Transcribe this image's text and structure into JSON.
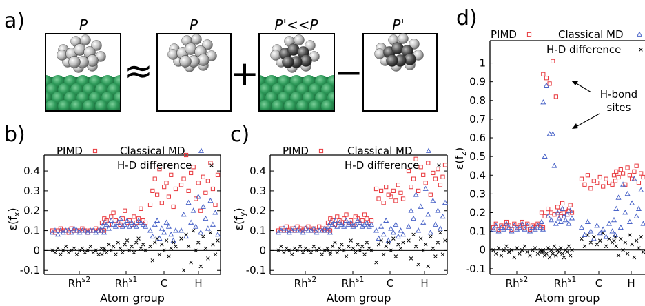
{
  "panels": {
    "a": {
      "letter": "a)",
      "labels": [
        "P",
        "P",
        "P'<<P",
        "P'"
      ],
      "ops": [
        "≈",
        "+",
        "−"
      ]
    },
    "b": {
      "letter": "b)"
    },
    "c": {
      "letter": "c)"
    },
    "d": {
      "letter": "d)"
    }
  },
  "annotation": {
    "line1": "H-bond",
    "line2": "sites"
  },
  "colors": {
    "pimd": "#e8383d",
    "classical": "#4a64c8",
    "hd": "#000000",
    "slab": "#2e9a5a"
  },
  "chart_data": [
    {
      "type": "scatter",
      "panel": "b",
      "ylabel": "ε(f_x)",
      "xlabel": "Atom group",
      "categories": [
        "Rh^s2",
        "Rh^s1",
        "C",
        "H"
      ],
      "ylim": [
        -0.12,
        0.48
      ],
      "yticks": [
        -0.1,
        0,
        0.1,
        0.2,
        0.3,
        0.4
      ],
      "legend": [
        "PIMD",
        "Classical MD",
        "H-D difference"
      ],
      "series": [
        {
          "name": "PIMD",
          "marker": "square",
          "values": [
            [
              0.1,
              0.09,
              0.1,
              0.11,
              0.1,
              0.1,
              0.09,
              0.11,
              0.1,
              0.1,
              0.1,
              0.11,
              0.1,
              0.09,
              0.1,
              0.1,
              0.11,
              0.1,
              0.1,
              0.1
            ],
            [
              0.14,
              0.16,
              0.15,
              0.13,
              0.17,
              0.19,
              0.15,
              0.14,
              0.13,
              0.16,
              0.2,
              0.14,
              0.15,
              0.13,
              0.17,
              0.14,
              0.16,
              0.21,
              0.15,
              0.14
            ],
            [
              0.23,
              0.3,
              0.36,
              0.28,
              0.41,
              0.24,
              0.32,
              0.34,
              0.27,
              0.38,
              0.22,
              0.31
            ],
            [
              0.33,
              0.36,
              0.48,
              0.3,
              0.39,
              0.42,
              0.26,
              0.34,
              0.2,
              0.37,
              0.29,
              0.35,
              0.44,
              0.31,
              0.23,
              0.38
            ]
          ]
        },
        {
          "name": "Classical MD",
          "marker": "triangle",
          "values": [
            [
              0.09,
              0.1,
              0.08,
              0.1,
              0.09,
              0.1,
              0.1,
              0.09,
              0.11,
              0.1,
              0.09,
              0.1,
              0.1,
              0.09,
              0.1,
              0.1,
              0.09,
              0.1,
              0.1,
              0.09
            ],
            [
              0.12,
              0.14,
              0.13,
              0.11,
              0.15,
              0.13,
              0.12,
              0.14,
              0.16,
              0.12,
              0.13,
              0.15,
              0.12,
              0.14,
              0.13,
              0.12,
              0.15,
              0.14,
              0.13,
              0.12
            ],
            [
              0.1,
              0.07,
              0.13,
              0.15,
              0.06,
              0.11,
              0.09,
              0.14,
              0.12,
              0.08,
              0.05,
              0.1
            ],
            [
              0.1,
              0.18,
              0.07,
              0.24,
              0.14,
              0.2,
              0.12,
              0.27,
              0.09,
              0.22,
              0.16,
              0.11,
              0.25,
              0.13,
              0.19,
              0.08
            ]
          ]
        },
        {
          "name": "H-D difference",
          "marker": "cross",
          "values": [
            [
              0.0,
              -0.01,
              0.01,
              -0.02,
              0.0,
              0.02,
              -0.01,
              0.0,
              0.01,
              -0.02,
              0.0,
              0.01,
              -0.01,
              0.0,
              0.02,
              -0.01,
              0.0,
              -0.02,
              0.01,
              0.0
            ],
            [
              -0.02,
              0.01,
              -0.01,
              0.03,
              0.0,
              0.02,
              -0.02,
              0.04,
              0.01,
              -0.01,
              0.03,
              0.05,
              0.0,
              0.02,
              -0.01,
              0.04,
              0.06,
              0.01,
              0.03,
              0.0
            ],
            [
              0.02,
              -0.05,
              0.04,
              0.06,
              -0.02,
              0.03,
              0.0,
              0.05,
              -0.03,
              0.01,
              0.04,
              0.02
            ],
            [
              0.06,
              -0.1,
              0.08,
              0.02,
              -0.06,
              0.1,
              0.0,
              0.04,
              -0.08,
              0.07,
              0.01,
              -0.04,
              0.09,
              0.03,
              -0.02,
              0.05
            ]
          ]
        }
      ]
    },
    {
      "type": "scatter",
      "panel": "c",
      "ylabel": "ε(f_y)",
      "xlabel": "Atom group",
      "categories": [
        "Rh^s2",
        "Rh^s1",
        "C",
        "H"
      ],
      "ylim": [
        -0.12,
        0.48
      ],
      "yticks": [
        -0.1,
        0,
        0.1,
        0.2,
        0.3,
        0.4
      ],
      "legend": [
        "PIMD",
        "Classical MD",
        "H-D difference"
      ],
      "series": [
        {
          "name": "PIMD",
          "marker": "square",
          "values": [
            [
              0.1,
              0.11,
              0.1,
              0.12,
              0.1,
              0.11,
              0.1,
              0.12,
              0.11,
              0.1,
              0.11,
              0.12,
              0.1,
              0.11,
              0.1,
              0.12,
              0.11,
              0.1,
              0.11,
              0.1
            ],
            [
              0.14,
              0.16,
              0.15,
              0.13,
              0.17,
              0.15,
              0.14,
              0.16,
              0.18,
              0.14,
              0.15,
              0.13,
              0.17,
              0.16,
              0.14,
              0.15,
              0.18,
              0.16,
              0.14,
              0.15
            ],
            [
              0.31,
              0.26,
              0.3,
              0.24,
              0.32,
              0.28,
              0.27,
              0.3,
              0.25,
              0.33,
              0.29,
              0.26
            ],
            [
              0.4,
              0.32,
              0.36,
              0.46,
              0.3,
              0.42,
              0.38,
              0.34,
              0.44,
              0.28,
              0.39,
              0.36,
              0.41,
              0.33,
              0.37,
              0.43
            ]
          ]
        },
        {
          "name": "Classical MD",
          "marker": "triangle",
          "values": [
            [
              0.09,
              0.1,
              0.11,
              0.1,
              0.09,
              0.1,
              0.11,
              0.1,
              0.1,
              0.09,
              0.11,
              0.1,
              0.1,
              0.11,
              0.09,
              0.1,
              0.1,
              0.11,
              0.1,
              0.09
            ],
            [
              0.12,
              0.14,
              0.13,
              0.15,
              0.12,
              0.14,
              0.13,
              0.12,
              0.15,
              0.13,
              0.14,
              0.12,
              0.13,
              0.15,
              0.14,
              0.12,
              0.13,
              0.14,
              0.12,
              0.13
            ],
            [
              0.1,
              0.06,
              0.12,
              0.08,
              0.15,
              0.05,
              0.11,
              0.09,
              0.13,
              0.07,
              0.1,
              0.08
            ],
            [
              0.12,
              0.2,
              0.16,
              0.28,
              0.1,
              0.22,
              0.14,
              0.31,
              0.18,
              0.09,
              0.25,
              0.13,
              0.2,
              0.11,
              0.17,
              0.24
            ]
          ]
        },
        {
          "name": "H-D difference",
          "marker": "cross",
          "values": [
            [
              0.0,
              0.02,
              -0.01,
              0.01,
              0.0,
              -0.02,
              0.01,
              0.0,
              0.02,
              -0.01,
              0.01,
              0.0,
              -0.01,
              0.02,
              0.0,
              0.01,
              -0.02,
              0.0,
              0.01,
              -0.01
            ],
            [
              0.0,
              -0.02,
              0.02,
              0.04,
              -0.01,
              0.01,
              0.03,
              0.0,
              -0.03,
              0.02,
              0.05,
              0.01,
              -0.01,
              0.03,
              0.0,
              0.02,
              -0.02,
              0.04,
              0.01,
              0.0
            ],
            [
              -0.06,
              0.03,
              0.05,
              -0.02,
              0.02,
              0.04,
              0.0,
              0.06,
              -0.03,
              0.03,
              0.01,
              0.04
            ],
            [
              0.05,
              -0.04,
              0.08,
              0.02,
              -0.07,
              0.06,
              0.0,
              0.03,
              -0.08,
              0.07,
              0.01,
              -0.03,
              0.04,
              0.09,
              -0.02,
              0.05
            ]
          ]
        }
      ]
    },
    {
      "type": "scatter",
      "panel": "d",
      "ylabel": "ε(f_z)",
      "xlabel": "Atom group",
      "categories": [
        "Rh^s2",
        "Rh^s1",
        "C",
        "H"
      ],
      "ylim": [
        -0.13,
        1.12
      ],
      "yticks": [
        -0.1,
        0,
        0.1,
        0.2,
        0.3,
        0.4,
        0.5,
        0.6,
        0.7,
        0.8,
        0.9,
        1
      ],
      "legend": [
        "PIMD",
        "Classical MD",
        "H-D difference"
      ],
      "series": [
        {
          "name": "PIMD",
          "marker": "square",
          "values": [
            [
              0.12,
              0.14,
              0.11,
              0.13,
              0.12,
              0.15,
              0.13,
              0.11,
              0.14,
              0.12,
              0.13,
              0.15,
              0.12,
              0.14,
              0.11,
              0.13,
              0.12,
              0.14,
              0.13,
              0.12
            ],
            [
              0.2,
              0.94,
              0.18,
              0.92,
              0.22,
              0.89,
              0.2,
              1.01,
              0.19,
              0.82,
              0.23,
              0.21,
              0.18,
              0.25,
              0.2,
              0.22,
              0.19,
              0.21,
              0.24,
              0.2
            ],
            [
              0.38,
              0.35,
              0.4,
              0.33,
              0.37,
              0.36,
              0.39,
              0.34,
              0.38,
              0.36,
              0.35,
              0.37
            ],
            [
              0.4,
              0.42,
              0.39,
              0.43,
              0.41,
              0.35,
              0.44,
              0.4,
              0.38,
              0.42,
              0.45,
              0.36,
              0.41,
              0.39,
              0.43,
              0.35
            ]
          ]
        },
        {
          "name": "Classical MD",
          "marker": "triangle",
          "values": [
            [
              0.11,
              0.13,
              0.1,
              0.12,
              0.11,
              0.14,
              0.12,
              0.1,
              0.13,
              0.11,
              0.12,
              0.14,
              0.11,
              0.13,
              0.1,
              0.12,
              0.11,
              0.13,
              0.12,
              0.11
            ],
            [
              0.15,
              0.79,
              0.5,
              0.88,
              0.18,
              0.62,
              0.16,
              0.62,
              0.45,
              0.14,
              0.2,
              0.17,
              0.15,
              0.22,
              0.18,
              0.16,
              0.19,
              0.14,
              0.21,
              0.17
            ],
            [
              0.12,
              0.08,
              0.15,
              0.1,
              0.06,
              0.13,
              0.09,
              0.11,
              0.07,
              0.14,
              0.1,
              0.08
            ],
            [
              0.16,
              0.22,
              0.28,
              0.12,
              0.35,
              0.2,
              0.3,
              0.15,
              0.25,
              0.38,
              0.18,
              0.22,
              0.32,
              0.14,
              0.27,
              0.2
            ]
          ]
        },
        {
          "name": "H-D difference",
          "marker": "cross",
          "values": [
            [
              0.0,
              -0.02,
              0.01,
              -0.03,
              0.0,
              0.02,
              -0.01,
              0.0,
              -0.04,
              0.01,
              -0.02,
              0.0,
              0.02,
              -0.01,
              -0.03,
              0.0,
              0.01,
              -0.02,
              0.0,
              -0.01
            ],
            [
              -0.01,
              0.0,
              -0.03,
              -0.02,
              0.01,
              -0.04,
              0.0,
              -0.02,
              0.02,
              -0.03,
              0.0,
              -0.01,
              0.01,
              -0.02,
              -0.04,
              0.0,
              -0.01,
              0.02,
              -0.03,
              0.0
            ],
            [
              0.06,
              0.02,
              0.08,
              0.04,
              0.07,
              0.03,
              0.05,
              0.09,
              0.02,
              0.06,
              0.04,
              0.07
            ],
            [
              0.05,
              0.02,
              -0.03,
              0.06,
              0.0,
              0.04,
              -0.02,
              0.08,
              0.03,
              -0.04,
              0.05,
              0.01,
              0.07,
              -0.01,
              0.04,
              0.02
            ]
          ]
        }
      ]
    }
  ]
}
